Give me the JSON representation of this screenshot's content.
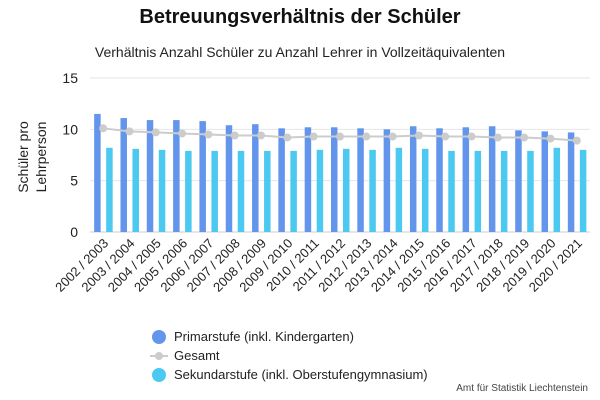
{
  "chart_data": {
    "type": "bar",
    "title": "Betreuungsverhältnis der Schüler",
    "subtitle": "Verhältnis Anzahl Schüler zu Anzahl Lehrer in Vollzeitäquivalenten",
    "ylabel": "Schüler pro Lehrperson",
    "xlabel": "",
    "ylim": [
      0,
      15
    ],
    "yticks": [
      0,
      5,
      10,
      15
    ],
    "grid": true,
    "legend_position": "bottom",
    "categories": [
      "2002 / 2003",
      "2003 / 2004",
      "2004 / 2005",
      "2005 / 2006",
      "2006 / 2007",
      "2007 / 2008",
      "2008 / 2009",
      "2009 / 2010",
      "2010 / 2011",
      "2011 / 2012",
      "2012 / 2013",
      "2013 / 2014",
      "2014 / 2015",
      "2015 / 2016",
      "2016 / 2017",
      "2017 / 2018",
      "2018 / 2019",
      "2019 / 2020",
      "2020 / 2021"
    ],
    "series": [
      {
        "name": "Primarstufe (inkl. Kindergarten)",
        "type": "bar",
        "color": "#6495ed",
        "values": [
          11.5,
          11.1,
          10.9,
          10.9,
          10.8,
          10.4,
          10.5,
          10.1,
          10.2,
          10.2,
          10.1,
          10.0,
          10.3,
          10.1,
          10.2,
          10.3,
          9.9,
          9.8,
          9.7
        ]
      },
      {
        "name": "Gesamt",
        "type": "line",
        "color": "#cccccc",
        "values": [
          10.1,
          9.8,
          9.7,
          9.6,
          9.5,
          9.4,
          9.4,
          9.2,
          9.3,
          9.3,
          9.3,
          9.3,
          9.4,
          9.3,
          9.3,
          9.2,
          9.2,
          9.1,
          8.9
        ]
      },
      {
        "name": "Sekundarstufe (inkl. Oberstufengymnasium)",
        "type": "bar",
        "color": "#4cc9f0",
        "values": [
          8.2,
          8.1,
          8.0,
          7.9,
          7.9,
          7.9,
          7.9,
          7.9,
          8.0,
          8.1,
          8.0,
          8.2,
          8.1,
          7.9,
          7.9,
          7.9,
          7.9,
          8.2,
          8.0
        ]
      }
    ]
  },
  "source": "Amt für Statistik Liechtenstein"
}
